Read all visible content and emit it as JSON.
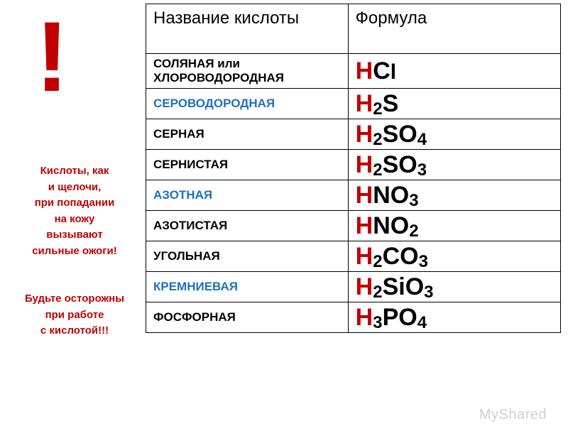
{
  "exclaim": "!",
  "warning_lines": [
    "Кислоты, как",
    "и щелочи,",
    "при попадании",
    "на кожу",
    "вызывают",
    "сильные ожоги!",
    "",
    "Будьте осторожны",
    "при работе",
    "с кислотой!!!"
  ],
  "warning_color": "#c00000",
  "header": {
    "name": "Название кислоты",
    "formula": "Формула"
  },
  "rows": [
    {
      "name_l1": "СОЛЯНАЯ или",
      "name_l2": "ХЛОРОВОДОРОДНАЯ",
      "blue": false,
      "h": "H",
      "rest": "C",
      "sub": "",
      "tail": "l",
      "tail_small": true
    },
    {
      "name_l1": "СЕРОВОДОРОДНАЯ",
      "name_l2": "",
      "blue": true,
      "h": "H",
      "rest": "",
      "sub": "2",
      "tail": "S",
      "tail_small": false
    },
    {
      "name_l1": "СЕРНАЯ",
      "name_l2": "",
      "blue": false,
      "h": "H",
      "rest": "",
      "sub": "2",
      "tail": "SO",
      "sub2": "4"
    },
    {
      "name_l1": "СЕРНИСТАЯ",
      "name_l2": "",
      "blue": false,
      "h": "H",
      "rest": "",
      "sub": "2",
      "tail": "SO",
      "sub2": "3"
    },
    {
      "name_l1": "АЗОТНАЯ",
      "name_l2": "",
      "blue": true,
      "h": "H",
      "rest": "NO",
      "sub": "",
      "tail": "",
      "sub2": "3"
    },
    {
      "name_l1": "АЗОТИСТАЯ",
      "name_l2": "",
      "blue": false,
      "h": "H",
      "rest": "NO",
      "sub": "",
      "tail": "",
      "sub2": "2"
    },
    {
      "name_l1": "УГОЛЬНАЯ",
      "name_l2": "",
      "blue": false,
      "h": "H",
      "rest": "",
      "sub": "2",
      "tail": "CO",
      "sub2": "3"
    },
    {
      "name_l1": "КРЕМНИЕВАЯ",
      "name_l2": "",
      "blue": true,
      "h": "H",
      "rest": "",
      "sub": "2",
      "tail": "SiO",
      "sub2": "3"
    },
    {
      "name_l1": "ФОСФОРНАЯ",
      "name_l2": "",
      "blue": false,
      "h": "H",
      "rest": "",
      "sub": "3",
      "tail": "PO",
      "sub2": "4"
    }
  ],
  "watermark": "MyShared"
}
